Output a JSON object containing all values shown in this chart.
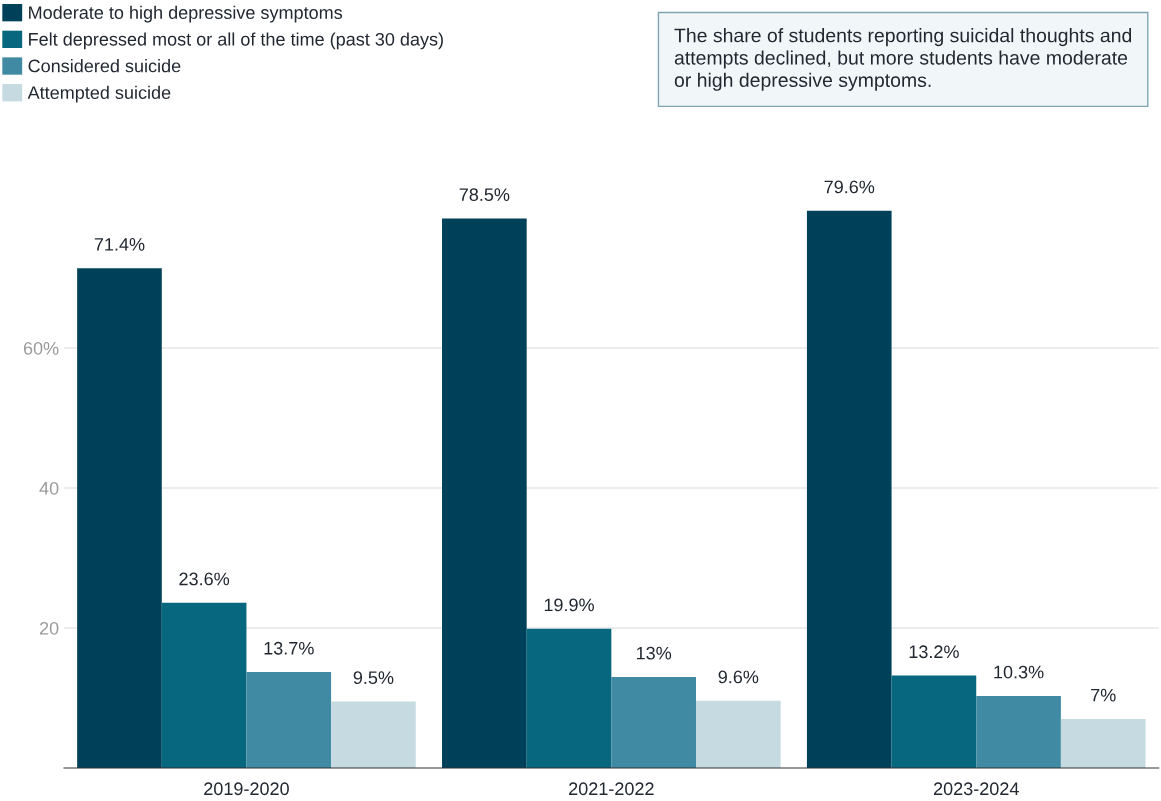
{
  "chart_data": {
    "type": "bar",
    "categories": [
      "2019-2020",
      "2021-2022",
      "2023-2024"
    ],
    "series": [
      {
        "name": "Moderate to high depressive symptoms",
        "color": "#00415a",
        "values": [
          71.4,
          78.5,
          79.6
        ],
        "value_labels": [
          "71.4%",
          "78.5%",
          "79.6%"
        ]
      },
      {
        "name": "Felt depressed most or all of the time (past 30 days)",
        "color": "#07677e",
        "values": [
          23.6,
          19.9,
          13.2
        ],
        "value_labels": [
          "23.6%",
          "19.9%",
          "13.2%"
        ]
      },
      {
        "name": "Considered suicide",
        "color": "#408aa3",
        "values": [
          13.7,
          13,
          10.3
        ],
        "value_labels": [
          "13.7%",
          "13%",
          "10.3%"
        ]
      },
      {
        "name": "Attempted suicide",
        "color": "#c6dbe1",
        "values": [
          9.5,
          9.6,
          7
        ],
        "value_labels": [
          "9.5%",
          "9.6%",
          "7%"
        ]
      }
    ],
    "ylim": [
      0,
      80
    ],
    "yticks": [
      20,
      40,
      {
        "value": 60,
        "label": "60%"
      }
    ],
    "grid": "y",
    "legend": "top left",
    "annotations": [
      "The share of students reporting suicidal thoughts and attempts declined, but more students have moderate or high depressive symptoms."
    ]
  }
}
